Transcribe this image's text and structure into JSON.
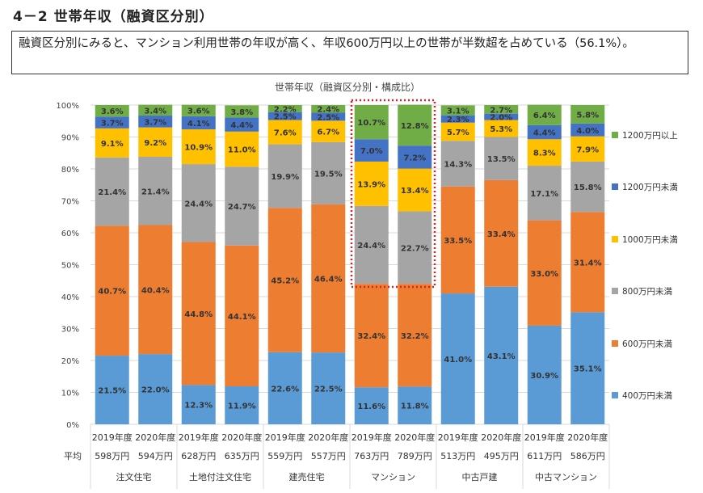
{
  "section_title": "4－2 世帯年収（融資区分別）",
  "summary": "融資区分別にみると、マンション利用世帯の年収が高く、年収600万円以上の世帯が半数超を占めている（56.1%）。",
  "chart_data": {
    "type": "bar",
    "stacked": true,
    "title": "世帯年収（融資区分別・構成比）",
    "ylim": [
      0,
      100
    ],
    "yticks": [
      "0%",
      "10%",
      "20%",
      "30%",
      "40%",
      "50%",
      "60%",
      "70%",
      "80%",
      "90%",
      "100%"
    ],
    "grid": true,
    "legend_position": "right",
    "categories": [
      "2019年度",
      "2020年度",
      "2019年度",
      "2020年度",
      "2019年度",
      "2020年度",
      "2019年度",
      "2020年度",
      "2019年度",
      "2020年度",
      "2019年度",
      "2020年度"
    ],
    "average_label": "平均",
    "averages": [
      "598万円",
      "594万円",
      "628万円",
      "635万円",
      "559万円",
      "557万円",
      "763万円",
      "789万円",
      "513万円",
      "495万円",
      "611万円",
      "586万円"
    ],
    "groups": [
      "注文住宅",
      "土地付注文住宅",
      "建売住宅",
      "マンション",
      "中古戸建",
      "中古マンション"
    ],
    "highlighted_group": "マンション",
    "series": [
      {
        "name": "400万円未満",
        "color": "#5B9BD5",
        "values": [
          21.5,
          22.0,
          12.3,
          11.9,
          22.6,
          22.5,
          11.6,
          11.8,
          41.0,
          43.1,
          30.9,
          35.1
        ]
      },
      {
        "name": "600万円未満",
        "color": "#ED7D31",
        "values": [
          40.7,
          40.4,
          44.8,
          44.1,
          45.2,
          46.4,
          32.4,
          32.2,
          33.5,
          33.4,
          33.0,
          31.4
        ]
      },
      {
        "name": "800万円未満",
        "color": "#A5A5A5",
        "values": [
          21.4,
          21.4,
          24.4,
          24.7,
          19.9,
          19.5,
          24.4,
          22.7,
          14.3,
          13.5,
          17.1,
          15.8
        ]
      },
      {
        "name": "1000万円未満",
        "color": "#FFC000",
        "values": [
          9.1,
          9.2,
          10.9,
          11.0,
          7.6,
          6.7,
          13.9,
          13.4,
          5.7,
          5.3,
          8.3,
          7.9
        ]
      },
      {
        "name": "1200万円未満",
        "color": "#4472C4",
        "values": [
          3.7,
          3.7,
          4.1,
          4.4,
          2.5,
          2.5,
          7.0,
          7.2,
          2.3,
          2.0,
          4.4,
          4.0
        ]
      },
      {
        "name": "1200万円以上",
        "color": "#70AD47",
        "values": [
          3.6,
          3.4,
          3.6,
          3.8,
          2.2,
          2.4,
          10.7,
          12.8,
          3.1,
          2.7,
          6.4,
          5.8
        ]
      }
    ]
  }
}
